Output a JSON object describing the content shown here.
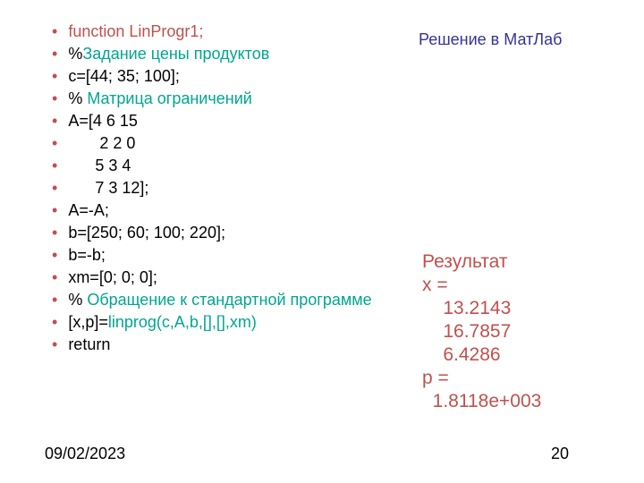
{
  "colors": {
    "red": "#c0504d",
    "green": "#00a690",
    "blue": "#333399",
    "black": "#000000",
    "bg": "#ffffff"
  },
  "typography": {
    "code_fontsize": 18,
    "result_fontsize": 21,
    "font_family": "Arial"
  },
  "left": {
    "items": [
      {
        "segments": [
          {
            "t": "function ",
            "c": "red"
          },
          {
            "t": "LinProgr1;",
            "c": "red"
          }
        ]
      },
      {
        "segments": [
          {
            "t": "%",
            "c": "black"
          },
          {
            "t": "Задание цены продуктов",
            "c": "green"
          }
        ]
      },
      {
        "segments": [
          {
            "t": "c=[44; 35; 100];",
            "c": "black"
          }
        ]
      },
      {
        "segments": [
          {
            "t": "% ",
            "c": "black"
          },
          {
            "t": "Матрица ограничений",
            "c": "green"
          }
        ]
      },
      {
        "segments": [
          {
            "t": "A=[4 6 15",
            "c": "black"
          }
        ]
      },
      {
        "segments": [
          {
            "t": "       2 2 0",
            "c": "black"
          }
        ]
      },
      {
        "segments": [
          {
            "t": "      5 3 4",
            "c": "black"
          }
        ]
      },
      {
        "segments": [
          {
            "t": "      7 3 12];",
            "c": "black"
          }
        ]
      },
      {
        "segments": [
          {
            "t": "A=-A;",
            "c": "black"
          }
        ]
      },
      {
        "segments": [
          {
            "t": "b=[250; 60; 100; 220];",
            "c": "black"
          }
        ]
      },
      {
        "segments": [
          {
            "t": "b=-b;",
            "c": "black"
          }
        ]
      },
      {
        "segments": [
          {
            "t": "xm=[0; 0; 0];",
            "c": "black"
          }
        ]
      },
      {
        "wrap": true,
        "segments": [
          {
            "t": "% ",
            "c": "black"
          },
          {
            "t": "Обращение к стандартной программе",
            "c": "green"
          }
        ]
      },
      {
        "segments": [
          {
            "t": "[x,p]=",
            "c": "black"
          },
          {
            "t": "linprog(c,A,b,[],[],xm)",
            "c": "green"
          }
        ]
      },
      {
        "segments": [
          {
            "t": "return",
            "c": "black"
          }
        ]
      }
    ]
  },
  "right_title": "Решение в МатЛаб",
  "result": {
    "label": "Результат",
    "lines": [
      "x =",
      "    13.2143",
      "    16.7857",
      "    6.4286",
      "p =",
      "  1.8118e+003"
    ]
  },
  "footer": {
    "date": "09/02/2023",
    "page": "20"
  }
}
